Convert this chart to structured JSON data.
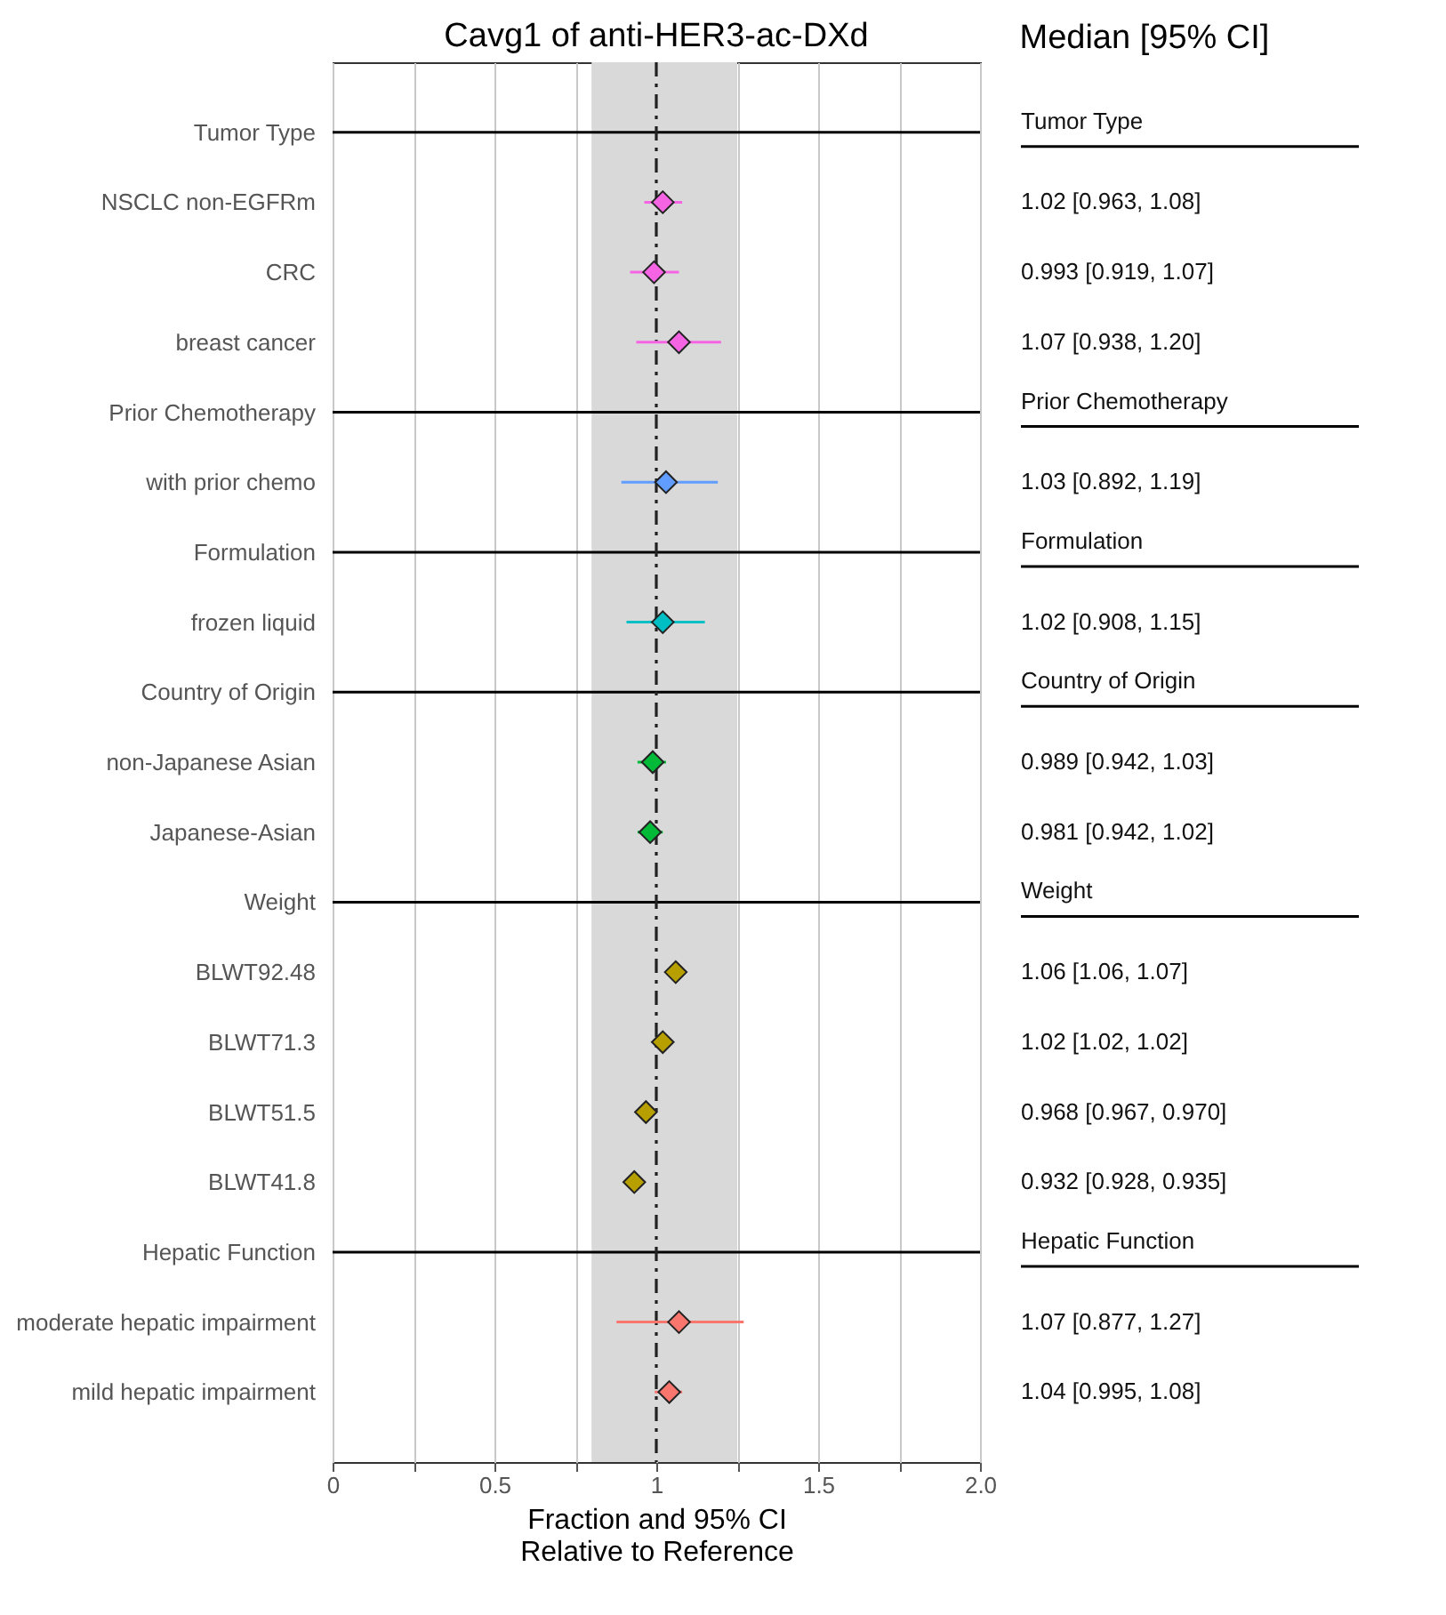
{
  "chart_data": {
    "type": "scatter",
    "orientation": "horizontal",
    "title": "Cavg1 of anti-HER3-ac-DXd",
    "xlabel": "Fraction and 95% CI\nRelative to Reference",
    "annotations": [
      "Median [95% CI]",
      "1.02 [0.963, 1.08]",
      "0.993 [0.919, 1.07]",
      "1.07 [0.938, 1.20]",
      "1.03 [0.892, 1.19]",
      "1.02 [0.908, 1.15]",
      "0.989 [0.942, 1.03]",
      "0.981 [0.942, 1.02]",
      "1.06 [1.06, 1.07]",
      "1.02 [1.02, 1.02]",
      "0.968 [0.967, 0.970]",
      "0.932 [0.928, 0.935]",
      "1.07 [0.877, 1.27]",
      "1.04 [0.995, 1.08]"
    ],
    "categories": [
      "Tumor Type",
      "NSCLC non-EGFRm",
      "CRC",
      "breast cancer",
      "Prior Chemotherapy",
      "with prior chemo",
      "Formulation",
      "frozen liquid",
      "Country of Origin",
      "non-Japanese Asian",
      "Japanese-Asian",
      "Weight",
      "BLWT92.48",
      "BLWT71.3",
      "BLWT51.5",
      "BLWT41.8",
      "Hepatic Function",
      "moderate hepatic impairment",
      "mild hepatic impairment"
    ],
    "series": [
      {
        "color": "#f564e3",
        "values": [
          null,
          1.02,
          0.993,
          1.07,
          null,
          null,
          null,
          null,
          null,
          null,
          null,
          null,
          null,
          null,
          null,
          null,
          null,
          null,
          null
        ],
        "errors": [
          null,
          [
            0.963,
            1.08
          ],
          [
            0.919,
            1.07
          ],
          [
            0.938,
            1.2
          ],
          null,
          null,
          null,
          null,
          null,
          null,
          null,
          null,
          null,
          null,
          null,
          null,
          null,
          null,
          null
        ]
      },
      {
        "color": "#619cff",
        "values": [
          null,
          null,
          null,
          null,
          null,
          1.03,
          null,
          null,
          null,
          null,
          null,
          null,
          null,
          null,
          null,
          null,
          null,
          null,
          null
        ],
        "errors": [
          null,
          null,
          null,
          null,
          null,
          [
            0.892,
            1.19
          ],
          null,
          null,
          null,
          null,
          null,
          null,
          null,
          null,
          null,
          null,
          null,
          null,
          null
        ]
      },
      {
        "color": "#00bfc4",
        "values": [
          null,
          null,
          null,
          null,
          null,
          null,
          null,
          1.02,
          null,
          null,
          null,
          null,
          null,
          null,
          null,
          null,
          null,
          null,
          null
        ],
        "errors": [
          null,
          null,
          null,
          null,
          null,
          null,
          null,
          [
            0.908,
            1.15
          ],
          null,
          null,
          null,
          null,
          null,
          null,
          null,
          null,
          null,
          null,
          null
        ]
      },
      {
        "color": "#00ba38",
        "values": [
          null,
          null,
          null,
          null,
          null,
          null,
          null,
          null,
          null,
          0.989,
          0.981,
          null,
          null,
          null,
          null,
          null,
          null,
          null,
          null
        ],
        "errors": [
          null,
          null,
          null,
          null,
          null,
          null,
          null,
          null,
          null,
          [
            0.942,
            1.03
          ],
          [
            0.942,
            1.02
          ],
          null,
          null,
          null,
          null,
          null,
          null,
          null,
          null
        ]
      },
      {
        "color": "#b79f00",
        "values": [
          null,
          null,
          null,
          null,
          null,
          null,
          null,
          null,
          null,
          null,
          null,
          null,
          1.06,
          1.02,
          0.968,
          0.932,
          null,
          null,
          null
        ]
      },
      {
        "color": "#f8766d",
        "values": [
          null,
          null,
          null,
          null,
          null,
          null,
          null,
          null,
          null,
          null,
          null,
          null,
          null,
          null,
          null,
          null,
          null,
          1.07,
          1.04
        ],
        "errors": [
          null,
          null,
          null,
          null,
          null,
          null,
          null,
          null,
          null,
          null,
          null,
          null,
          null,
          null,
          null,
          null,
          null,
          [
            0.877,
            1.27
          ],
          [
            0.995,
            1.08
          ]
        ]
      }
    ],
    "xlim": [
      0,
      2
    ],
    "xticks": [
      0,
      {
        "value": 0.25,
        "label": null
      },
      0.5,
      {
        "value": 0.75,
        "label": null
      },
      1,
      {
        "value": 1.25,
        "label": null
      },
      1.5,
      {
        "value": 1.75,
        "label": null
      },
      {
        "value": 2,
        "label": "2.0"
      }
    ],
    "bands": [
      {
        "axis": "x",
        "from": 0.8,
        "to": 1.25,
        "color": "#d9d9d9"
      }
    ],
    "ref_lines": [
      {
        "axis": "x",
        "value": 1,
        "line_style": "dashed"
      },
      {
        "axis": "y",
        "value": "Tumor Type",
        "label": "Tumor Type"
      },
      {
        "axis": "y",
        "value": "Prior Chemotherapy",
        "label": "Prior Chemotherapy"
      },
      {
        "axis": "y",
        "value": "Formulation",
        "label": "Formulation"
      },
      {
        "axis": "y",
        "value": "Country of Origin",
        "label": "Country of Origin"
      },
      {
        "axis": "y",
        "value": "Weight",
        "label": "Weight"
      },
      {
        "axis": "y",
        "value": "Hepatic Function",
        "label": "Hepatic Function"
      }
    ],
    "grid": "x",
    "marker": "diamond"
  }
}
